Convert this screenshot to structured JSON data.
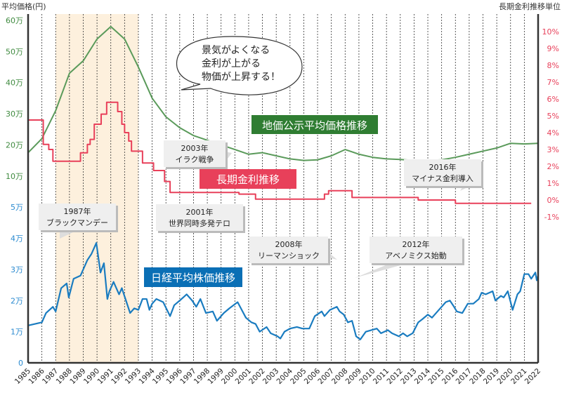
{
  "chart_data": {
    "type": "line",
    "left_axis_title": "平均価格(円)",
    "right_axis_title": "長期金利推移単位",
    "left_ticks": [
      {
        "v": 0,
        "l": "0"
      },
      {
        "v": 1,
        "l": "1万"
      },
      {
        "v": 2,
        "l": "2万"
      },
      {
        "v": 3,
        "l": "3万"
      },
      {
        "v": 4,
        "l": "4万"
      },
      {
        "v": 5,
        "l": "5万"
      },
      {
        "v": 10,
        "l": "10万"
      },
      {
        "v": 20,
        "l": "20万"
      },
      {
        "v": 30,
        "l": "30万"
      },
      {
        "v": 40,
        "l": "40万"
      },
      {
        "v": 50,
        "l": "50万"
      },
      {
        "v": 60,
        "l": "60万"
      }
    ],
    "right_ticks": [
      "-1%",
      "0%",
      "1%",
      "2%",
      "3%",
      "4%",
      "5%",
      "6%",
      "7%",
      "8%",
      "9%",
      "10%"
    ],
    "right_range": [
      -1,
      10
    ],
    "x_ticks": [
      "1985",
      "1986",
      "1987",
      "1988",
      "1989",
      "1990",
      "1991",
      "1992",
      "1993",
      "1994",
      "1995",
      "1996",
      "1997",
      "1998",
      "1999",
      "2000",
      "2001",
      "2002",
      "2003",
      "2004",
      "2005",
      "2006",
      "2007",
      "2008",
      "2009",
      "2010",
      "2011",
      "2012",
      "2013",
      "2014",
      "2015",
      "2016",
      "2017",
      "2018",
      "2019",
      "2020",
      "2021",
      "2022"
    ],
    "x_range": [
      1985,
      2022
    ],
    "shaded_period": [
      1987,
      1993
    ],
    "colors": {
      "land": "#5a9a5a",
      "rate": "#e8405a",
      "nikkei": "#1a7cc0",
      "shade": "#fdf0dd",
      "green_tick": "#3f8a3f",
      "blue_tick": "#2a8ad0"
    },
    "series": [
      {
        "name": "地価公示平均価格推移",
        "axis": "left",
        "unit": "万円",
        "points": [
          [
            1985,
            17.5
          ],
          [
            1986,
            22
          ],
          [
            1987,
            31
          ],
          [
            1988,
            43
          ],
          [
            1989,
            47
          ],
          [
            1990,
            54
          ],
          [
            1991,
            58
          ],
          [
            1992,
            54
          ],
          [
            1993,
            45
          ],
          [
            1994,
            35
          ],
          [
            1995,
            29
          ],
          [
            1996,
            25.5
          ],
          [
            1997,
            23
          ],
          [
            1998,
            21.5
          ],
          [
            1999,
            20
          ],
          [
            2000,
            18.5
          ],
          [
            2001,
            17
          ],
          [
            2002,
            17.5
          ],
          [
            2003,
            16.5
          ],
          [
            2004,
            15.5
          ],
          [
            2005,
            15
          ],
          [
            2006,
            15.2
          ],
          [
            2007,
            16.5
          ],
          [
            2008,
            18.5
          ],
          [
            2009,
            17
          ],
          [
            2010,
            16
          ],
          [
            2011,
            15.5
          ],
          [
            2012,
            15.3
          ],
          [
            2013,
            15
          ],
          [
            2014,
            15
          ],
          [
            2015,
            15.2
          ],
          [
            2016,
            16
          ],
          [
            2017,
            17
          ],
          [
            2018,
            18
          ],
          [
            2019,
            19
          ],
          [
            2020,
            20.5
          ],
          [
            2021,
            20.3
          ],
          [
            2022,
            20.5
          ]
        ]
      },
      {
        "name": "長期金利推移",
        "axis": "right",
        "unit": "%",
        "step": true,
        "points": [
          [
            1985,
            4.75
          ],
          [
            1986.1,
            3.3
          ],
          [
            1986.5,
            3.0
          ],
          [
            1986.8,
            2.3
          ],
          [
            1988.8,
            2.8
          ],
          [
            1989.3,
            3.3
          ],
          [
            1989.5,
            3.6
          ],
          [
            1989.8,
            4.5
          ],
          [
            1990.3,
            5.1
          ],
          [
            1990.7,
            5.8
          ],
          [
            1991.5,
            5.25
          ],
          [
            1991.8,
            4.5
          ],
          [
            1992.0,
            4.0
          ],
          [
            1992.3,
            3.5
          ],
          [
            1992.5,
            2.9
          ],
          [
            1993.3,
            2.2
          ],
          [
            1994.1,
            1.75
          ],
          [
            1994.9,
            1.1
          ],
          [
            1995.3,
            0.45
          ],
          [
            2000.3,
            0.35
          ],
          [
            2001.5,
            0.05
          ],
          [
            2006.5,
            0.35
          ],
          [
            2006.8,
            0.55
          ],
          [
            2008.5,
            0.15
          ],
          [
            2013.3,
            0.0
          ],
          [
            2016,
            -0.2
          ],
          [
            2021.5,
            -0.2
          ]
        ]
      },
      {
        "name": "日経平均株価推移",
        "axis": "left",
        "unit": "万円",
        "points": [
          [
            1985,
            1.2
          ],
          [
            1985.5,
            1.25
          ],
          [
            1986,
            1.3
          ],
          [
            1986.3,
            1.6
          ],
          [
            1986.8,
            1.8
          ],
          [
            1987,
            1.65
          ],
          [
            1987.4,
            2.4
          ],
          [
            1987.8,
            2.55
          ],
          [
            1987.95,
            2.1
          ],
          [
            1988.3,
            2.7
          ],
          [
            1988.8,
            2.8
          ],
          [
            1989.3,
            3.3
          ],
          [
            1989.6,
            3.5
          ],
          [
            1989.95,
            3.85
          ],
          [
            1990.25,
            2.9
          ],
          [
            1990.5,
            3.2
          ],
          [
            1990.75,
            2.05
          ],
          [
            1990.9,
            2.3
          ],
          [
            1991.2,
            2.6
          ],
          [
            1991.6,
            2.2
          ],
          [
            1991.8,
            2.4
          ],
          [
            1992.1,
            2.0
          ],
          [
            1992.4,
            1.6
          ],
          [
            1992.7,
            1.75
          ],
          [
            1993.0,
            1.7
          ],
          [
            1993.3,
            2.05
          ],
          [
            1993.6,
            2.05
          ],
          [
            1993.8,
            1.7
          ],
          [
            1994.0,
            1.9
          ],
          [
            1994.3,
            2.05
          ],
          [
            1994.8,
            1.95
          ],
          [
            1995.3,
            1.5
          ],
          [
            1995.6,
            1.85
          ],
          [
            1996.0,
            2.0
          ],
          [
            1996.5,
            2.2
          ],
          [
            1996.9,
            2.0
          ],
          [
            1997.2,
            1.8
          ],
          [
            1997.5,
            2.05
          ],
          [
            1997.9,
            1.6
          ],
          [
            1998.4,
            1.65
          ],
          [
            1998.7,
            1.35
          ],
          [
            1999.2,
            1.6
          ],
          [
            1999.6,
            1.75
          ],
          [
            2000.2,
            1.95
          ],
          [
            2000.5,
            1.7
          ],
          [
            2000.8,
            1.45
          ],
          [
            2001.2,
            1.3
          ],
          [
            2001.5,
            1.25
          ],
          [
            2001.8,
            1.0
          ],
          [
            2002.3,
            1.15
          ],
          [
            2002.6,
            0.95
          ],
          [
            2003.1,
            0.85
          ],
          [
            2003.3,
            0.78
          ],
          [
            2003.6,
            1.0
          ],
          [
            2004.0,
            1.1
          ],
          [
            2004.5,
            1.15
          ],
          [
            2004.9,
            1.1
          ],
          [
            2005.4,
            1.1
          ],
          [
            2005.8,
            1.5
          ],
          [
            2006.3,
            1.65
          ],
          [
            2006.5,
            1.5
          ],
          [
            2006.9,
            1.7
          ],
          [
            2007.4,
            1.8
          ],
          [
            2007.6,
            1.65
          ],
          [
            2007.9,
            1.55
          ],
          [
            2008.2,
            1.3
          ],
          [
            2008.5,
            1.35
          ],
          [
            2008.8,
            0.85
          ],
          [
            2009.1,
            0.75
          ],
          [
            2009.5,
            1.0
          ],
          [
            2009.9,
            1.05
          ],
          [
            2010.3,
            1.1
          ],
          [
            2010.6,
            0.95
          ],
          [
            2011.1,
            1.05
          ],
          [
            2011.4,
            0.95
          ],
          [
            2011.9,
            0.85
          ],
          [
            2012.2,
            0.95
          ],
          [
            2012.5,
            0.85
          ],
          [
            2012.9,
            0.95
          ],
          [
            2013.3,
            1.3
          ],
          [
            2013.6,
            1.4
          ],
          [
            2014.0,
            1.55
          ],
          [
            2014.3,
            1.45
          ],
          [
            2014.8,
            1.7
          ],
          [
            2015.3,
            1.95
          ],
          [
            2015.6,
            2.0
          ],
          [
            2015.9,
            1.8
          ],
          [
            2016.1,
            1.65
          ],
          [
            2016.5,
            1.6
          ],
          [
            2016.9,
            1.9
          ],
          [
            2017.3,
            1.9
          ],
          [
            2017.7,
            2.05
          ],
          [
            2017.9,
            2.25
          ],
          [
            2018.2,
            2.2
          ],
          [
            2018.7,
            2.3
          ],
          [
            2018.9,
            2.0
          ],
          [
            2019.3,
            2.15
          ],
          [
            2019.5,
            2.1
          ],
          [
            2019.8,
            2.3
          ],
          [
            2020.15,
            1.7
          ],
          [
            2020.5,
            2.2
          ],
          [
            2020.7,
            2.3
          ],
          [
            2021.0,
            2.85
          ],
          [
            2021.3,
            2.85
          ],
          [
            2021.5,
            2.7
          ],
          [
            2021.8,
            2.9
          ],
          [
            2021.9,
            2.65
          ],
          [
            2022,
            2.8
          ]
        ]
      }
    ],
    "legend_labels": {
      "land": "地価公示平均価格推移",
      "rate": "長期金利推移",
      "nikkei": "日経平均株価推移"
    },
    "bubble": [
      "景気がよくなる",
      "金利が上がる",
      "物価が上昇する！"
    ],
    "annotations": [
      {
        "year": "2003年",
        "event": "イラク戦争"
      },
      {
        "year": "2016年",
        "event": "マイナス金利導入"
      },
      {
        "year": "1987年",
        "event": "ブラックマンデー"
      },
      {
        "year": "2001年",
        "event": "世界同時多発テロ"
      },
      {
        "year": "2008年",
        "event": "リーマンショック"
      },
      {
        "year": "2012年",
        "event": "アベノミクス始動"
      }
    ]
  }
}
